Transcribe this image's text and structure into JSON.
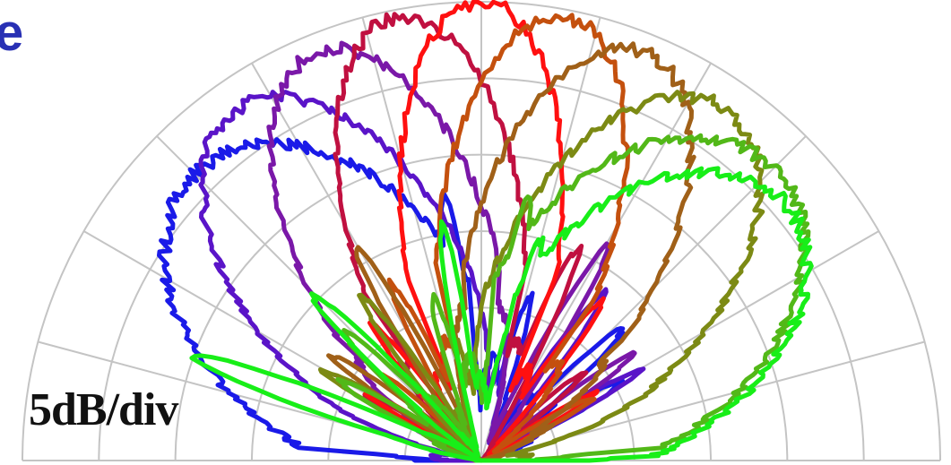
{
  "chart_data": {
    "type": "polar-half",
    "annotation": "5dB/div",
    "cropped_title_glyph": "e",
    "angle_range_deg": [
      0,
      180
    ],
    "angle_step_deg": 15,
    "radial_step_db": 5,
    "radial_divisions": 6,
    "grid": true,
    "colors": {
      "grid": "#c4c4c4",
      "annotation": "#111111",
      "cropped_glyph": "#2830b4"
    },
    "series": [
      {
        "color": "#1a1ae8",
        "main_lobe_deg": 135,
        "main_lobe_width_deg": 75,
        "peak_div": 5.3,
        "side_lobes": [
          [
            45,
            4.0,
            14
          ],
          [
            72,
            3.3,
            12
          ],
          [
            28,
            3.1,
            12
          ],
          [
            98,
            3.5,
            10
          ]
        ]
      },
      {
        "color": "#5a14c8",
        "main_lobe_deg": 125,
        "main_lobe_width_deg": 58,
        "peak_div": 5.6,
        "side_lobes": [
          [
            55,
            3.6,
            12
          ],
          [
            30,
            2.6,
            10
          ],
          [
            150,
            2.1,
            10
          ],
          [
            80,
            3.2,
            10
          ]
        ]
      },
      {
        "color": "#7a18a8",
        "main_lobe_deg": 112,
        "main_lobe_width_deg": 50,
        "peak_div": 5.75,
        "side_lobes": [
          [
            60,
            3.4,
            12
          ],
          [
            35,
            2.4,
            10
          ],
          [
            155,
            1.9,
            10
          ]
        ]
      },
      {
        "color": "#c01040",
        "main_lobe_deg": 101,
        "main_lobe_width_deg": 44,
        "peak_div": 5.9,
        "side_lobes": [
          [
            65,
            3.2,
            12
          ],
          [
            40,
            2.2,
            10
          ],
          [
            150,
            2.1,
            10
          ]
        ]
      },
      {
        "color": "#ff1010",
        "main_lobe_deg": 90,
        "main_lobe_width_deg": 40,
        "peak_div": 6.0,
        "side_lobes": [
          [
            130,
            3.0,
            12
          ],
          [
            52,
            3.0,
            12
          ],
          [
            150,
            2.0,
            10
          ],
          [
            30,
            2.0,
            10
          ]
        ]
      },
      {
        "color": "#c4500e",
        "main_lobe_deg": 79,
        "main_lobe_width_deg": 44,
        "peak_div": 5.9,
        "side_lobes": [
          [
            118,
            3.2,
            12
          ],
          [
            140,
            2.2,
            10
          ],
          [
            30,
            2.1,
            10
          ]
        ]
      },
      {
        "color": "#a06018",
        "main_lobe_deg": 68,
        "main_lobe_width_deg": 50,
        "peak_div": 5.75,
        "side_lobes": [
          [
            120,
            3.4,
            12
          ],
          [
            145,
            2.4,
            10
          ],
          [
            25,
            1.9,
            10
          ]
        ]
      },
      {
        "color": "#7c8a14",
        "main_lobe_deg": 55,
        "main_lobe_width_deg": 58,
        "peak_div": 5.6,
        "side_lobes": [
          [
            125,
            3.6,
            12
          ],
          [
            150,
            2.6,
            10
          ],
          [
            100,
            3.2,
            10
          ]
        ]
      },
      {
        "color": "#52b818",
        "main_lobe_deg": 45,
        "main_lobe_width_deg": 75,
        "peak_div": 5.4,
        "side_lobes": [
          [
            135,
            3.9,
            14
          ],
          [
            108,
            3.3,
            12
          ],
          [
            152,
            3.1,
            12
          ],
          [
            80,
            3.5,
            10
          ]
        ]
      },
      {
        "color": "#18ee18",
        "main_lobe_deg": 40,
        "main_lobe_width_deg": 70,
        "peak_div": 5.2,
        "side_lobes": [
          [
            160,
            4.0,
            12
          ],
          [
            135,
            3.4,
            12
          ],
          [
            100,
            3.6,
            10
          ],
          [
            75,
            3.0,
            10
          ]
        ]
      }
    ]
  }
}
